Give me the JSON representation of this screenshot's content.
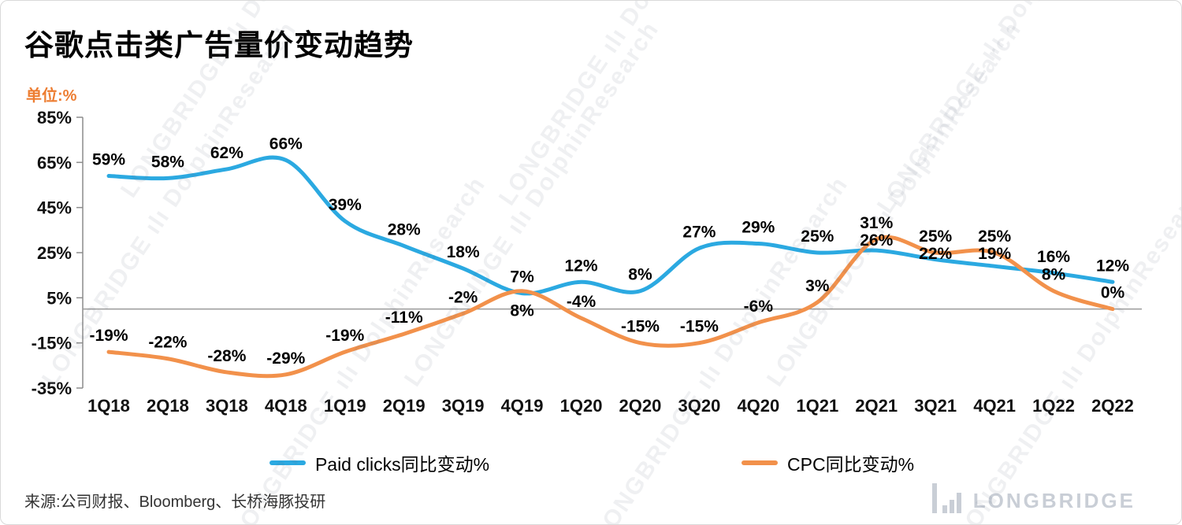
{
  "page": {
    "title": "谷歌点击类广告量价变动趋势",
    "unit_label": "单位:%",
    "source": "来源:公司财报、Bloomberg、长桥海豚投研",
    "watermark_text": "LONGBRIDGE ılı DolphinResearch",
    "logo_text": "LONGBRIDGE"
  },
  "chart_data": {
    "type": "line",
    "title": "谷歌点击类广告量价变动趋势",
    "unit": "%",
    "categories": [
      "1Q18",
      "2Q18",
      "3Q18",
      "4Q18",
      "1Q19",
      "2Q19",
      "3Q19",
      "4Q19",
      "1Q20",
      "2Q20",
      "3Q20",
      "4Q20",
      "1Q21",
      "2Q21",
      "3Q21",
      "4Q21",
      "1Q22",
      "2Q22"
    ],
    "series": [
      {
        "name": "Paid clicks同比变动%",
        "color": "#2BA9E1",
        "values": [
          59,
          58,
          62,
          66,
          39,
          28,
          18,
          7,
          12,
          8,
          27,
          29,
          25,
          26,
          22,
          19,
          16,
          12
        ],
        "label_below": []
      },
      {
        "name": "CPC同比变动%",
        "color": "#F2914B",
        "values": [
          -19,
          -22,
          -28,
          -29,
          -19,
          -11,
          -2,
          8,
          -4,
          -15,
          -15,
          -6,
          3,
          31,
          25,
          25,
          8,
          0
        ],
        "label_below": [
          "4Q19"
        ]
      }
    ],
    "ylim": [
      -35,
      85
    ],
    "yticks": [
      85,
      65,
      45,
      25,
      5,
      -15,
      -35
    ],
    "grid": false,
    "zero_line": true,
    "legend_position": "bottom",
    "axis_color": "#8c8c8c",
    "zero_line_color": "#9a9a9a",
    "label_color": "#000000"
  }
}
